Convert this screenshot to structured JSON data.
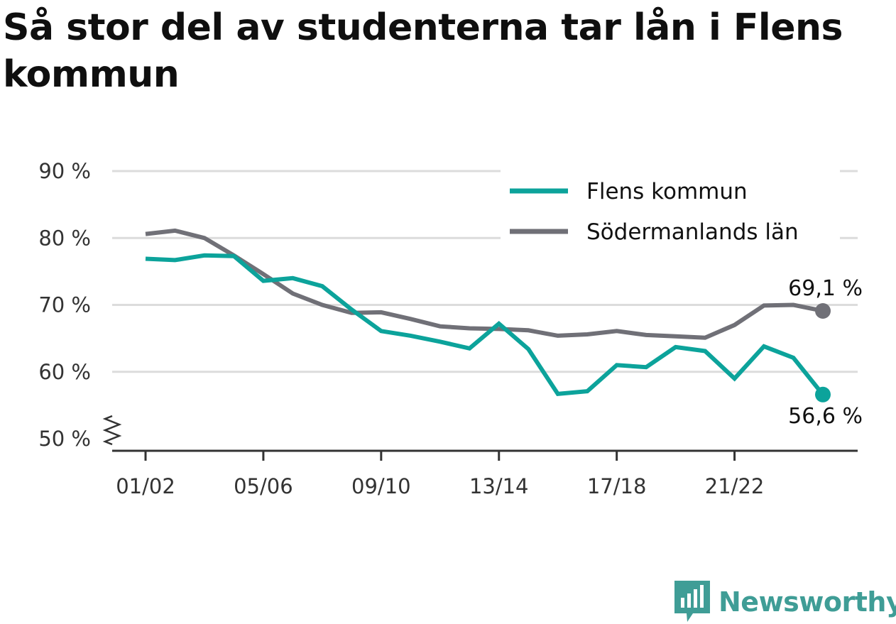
{
  "title": "Så stor del av studenterna tar lån i Flens kommun",
  "colors": {
    "flen": "#0ca39b",
    "sodermanland": "#707077",
    "grid": "#dcdcdc",
    "axis": "#333333",
    "brand": "#3f9d96"
  },
  "brand": {
    "name": "Newsworthy",
    "icon": "newsworthy-logo-icon"
  },
  "chart_data": {
    "type": "line",
    "title": "Så stor del av studenterna tar lån i Flens kommun",
    "xlabel": "",
    "ylabel": "",
    "ylim": [
      50,
      90
    ],
    "y_ticks": [
      90,
      80,
      70,
      60,
      50
    ],
    "y_tick_labels": [
      "90 %",
      "80 %",
      "70 %",
      "60 %",
      "50 %"
    ],
    "y_axis_break": true,
    "grid": true,
    "legend_position": "top-right",
    "x": [
      "01/02",
      "02/03",
      "03/04",
      "04/05",
      "05/06",
      "06/07",
      "07/08",
      "08/09",
      "09/10",
      "10/11",
      "11/12",
      "12/13",
      "13/14",
      "14/15",
      "15/16",
      "16/17",
      "17/18",
      "18/19",
      "19/20",
      "20/21",
      "21/22",
      "22/23",
      "23/24",
      "24/25"
    ],
    "x_tick_labels": [
      "01/02",
      "05/06",
      "09/10",
      "13/14",
      "17/18",
      "21/22"
    ],
    "series": [
      {
        "name": "Flens kommun",
        "color": "#0ca39b",
        "values": [
          76.9,
          76.7,
          77.4,
          77.3,
          73.6,
          74.0,
          72.8,
          69.3,
          66.1,
          65.4,
          64.5,
          63.5,
          67.2,
          63.4,
          56.7,
          57.1,
          61.0,
          60.7,
          63.7,
          63.1,
          59.0,
          63.8,
          62.1,
          56.6
        ],
        "end_label": "56,6 %"
      },
      {
        "name": "Södermanlands län",
        "color": "#707077",
        "values": [
          80.6,
          81.1,
          80.0,
          77.4,
          74.6,
          71.7,
          70.0,
          68.8,
          68.9,
          67.9,
          66.8,
          66.5,
          66.4,
          66.2,
          65.4,
          65.6,
          66.1,
          65.5,
          65.3,
          65.1,
          67.0,
          69.9,
          70.0,
          69.1
        ],
        "end_label": "69,1 %"
      }
    ]
  }
}
